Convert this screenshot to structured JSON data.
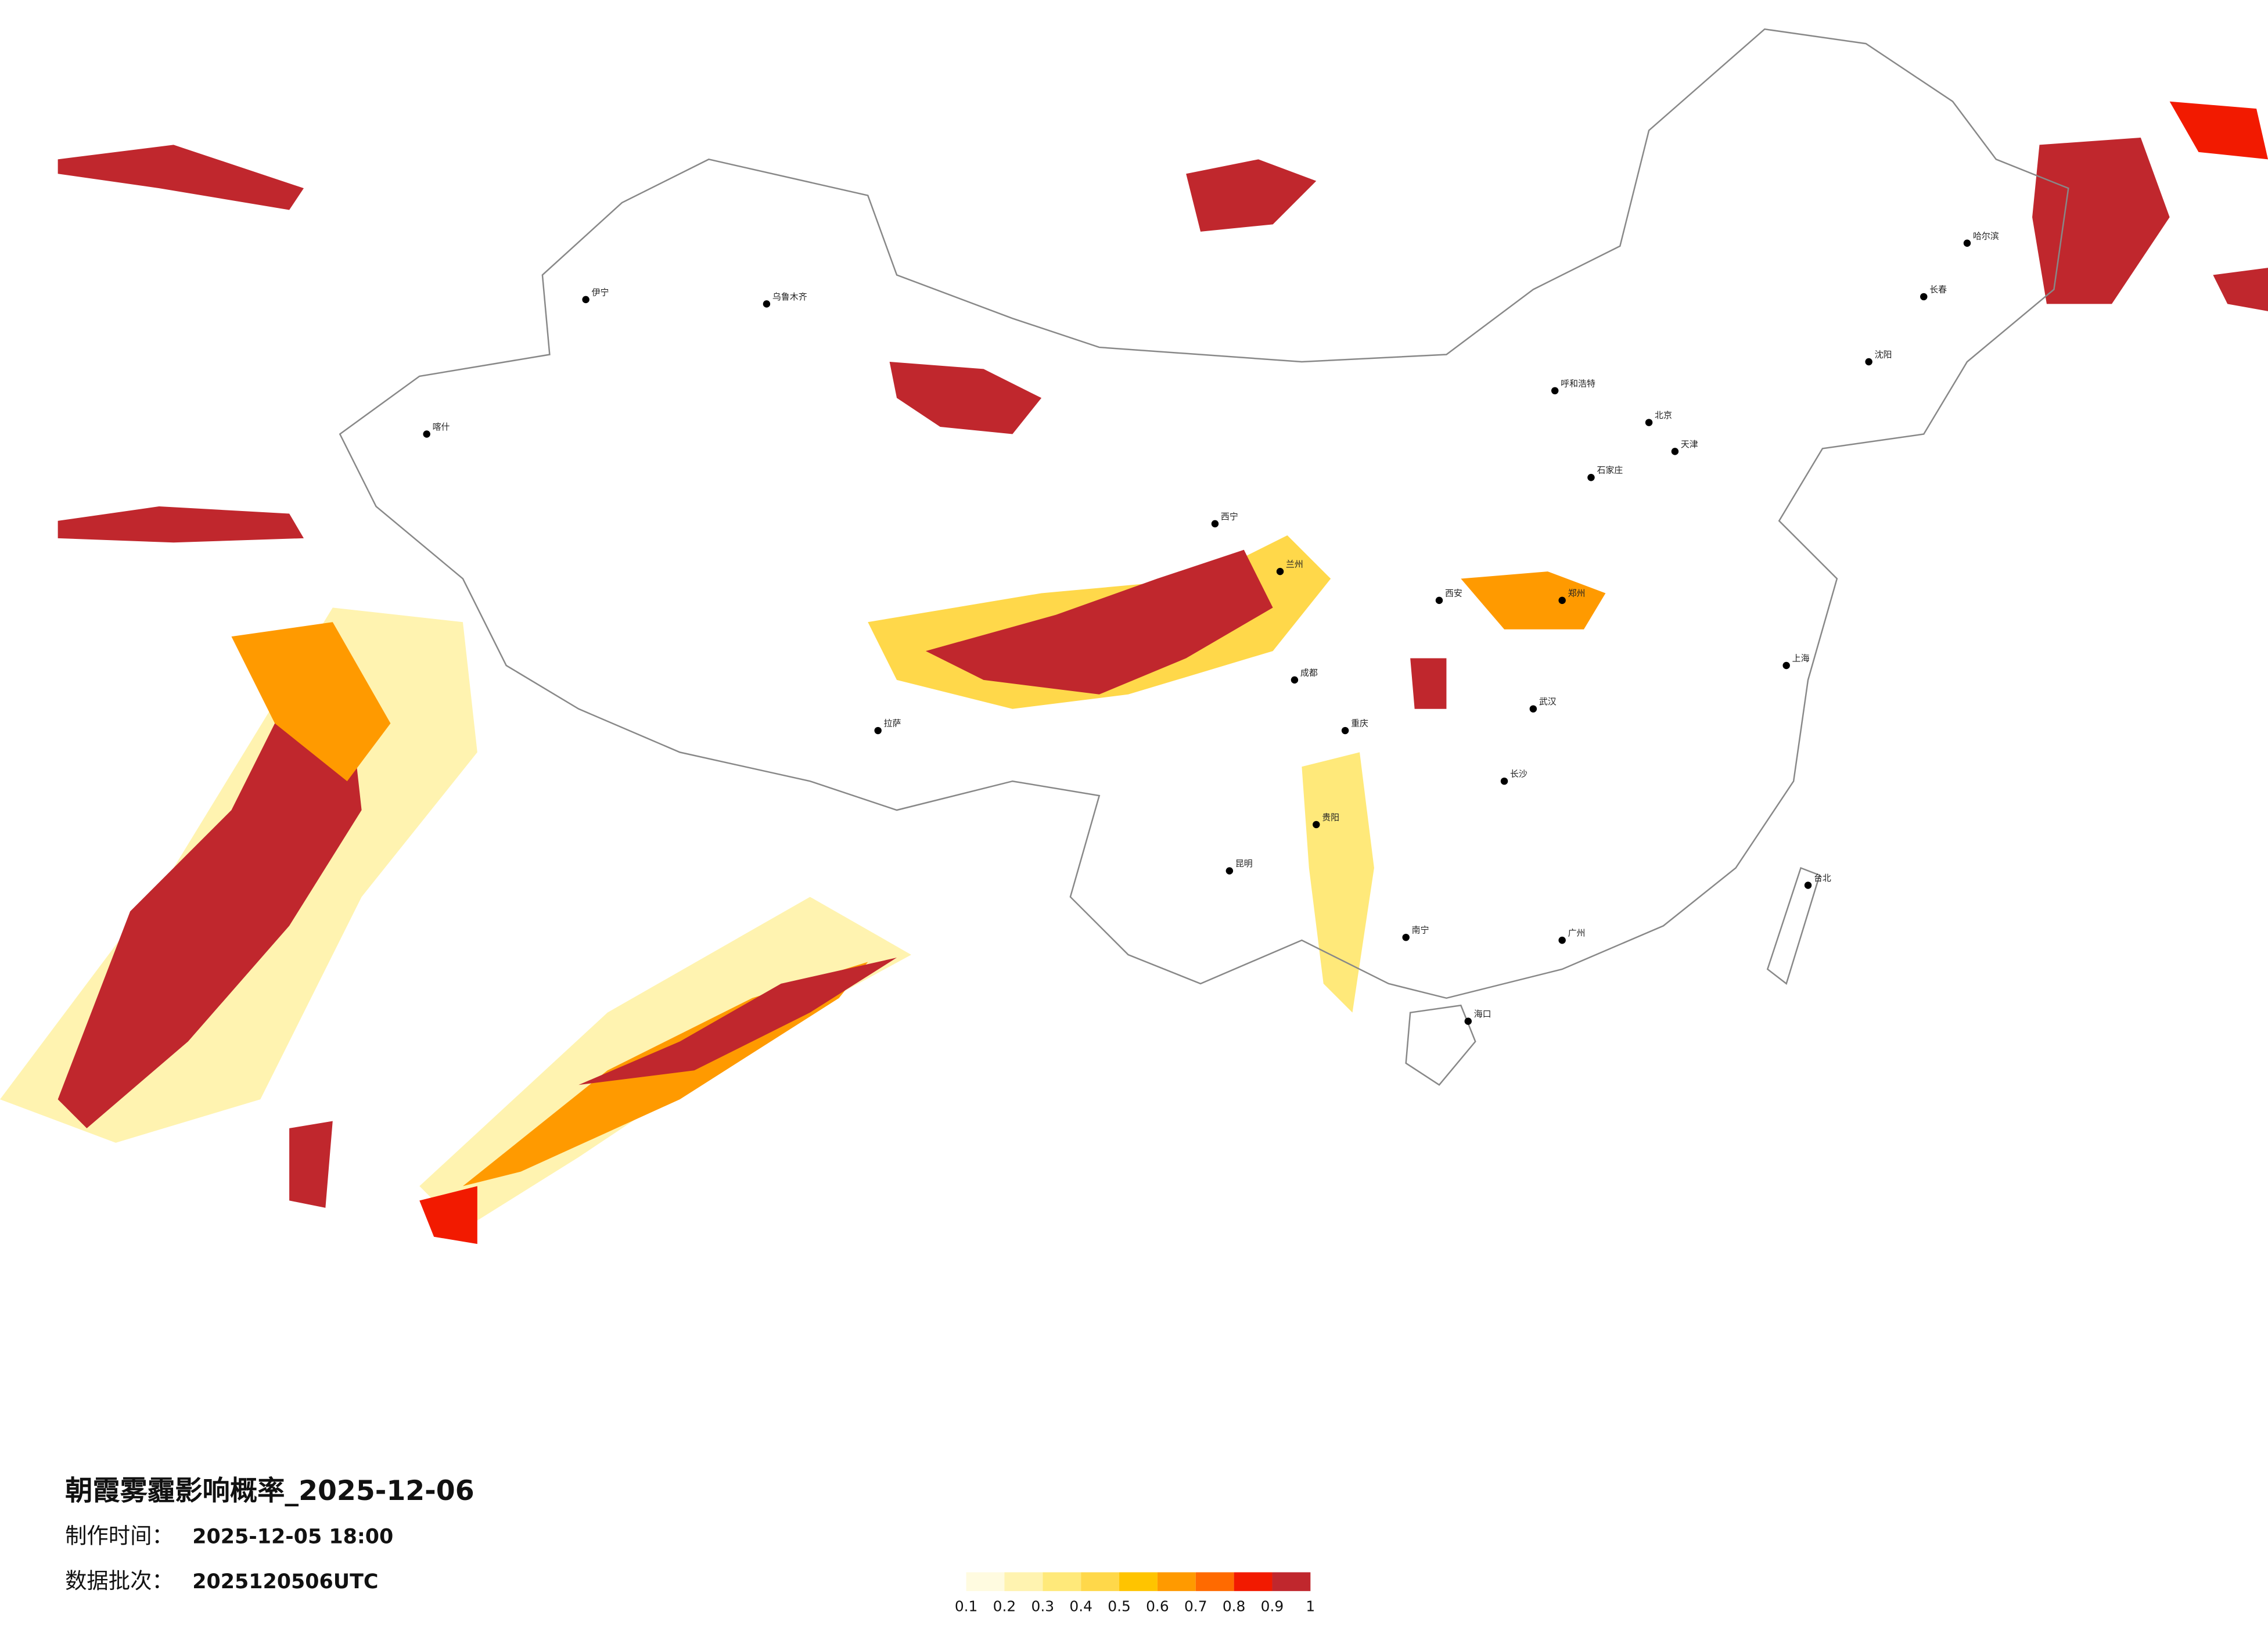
{
  "title": "朝霞雾霾影响概率_2025-12-06",
  "issue_time": {
    "label": "制作时间：",
    "value": "2025-12-05 18:00"
  },
  "batch": {
    "label": "数据批次：",
    "value": "2025120506UTC"
  },
  "legend": {
    "colors": [
      "#fffbe0",
      "#fff3b0",
      "#ffe97a",
      "#ffd84a",
      "#ffc400",
      "#ff9a00",
      "#ff6a00",
      "#f21a00",
      "#c0272d"
    ],
    "ticks": [
      "0.1",
      "0.2",
      "0.3",
      "0.4",
      "0.5",
      "0.6",
      "0.7",
      "0.8",
      "0.9",
      "1"
    ]
  },
  "cities": [
    "乌鲁木齐",
    "伊宁",
    "喀什",
    "拉萨",
    "西宁",
    "兰州",
    "呼和浩特",
    "北京",
    "天津",
    "石家庄",
    "沈阳",
    "长春",
    "哈尔滨",
    "郑州",
    "西安",
    "武汉",
    "成都",
    "重庆",
    "贵阳",
    "昆明",
    "长沙",
    "南宁",
    "广州",
    "海口",
    "台北",
    "上海"
  ]
}
